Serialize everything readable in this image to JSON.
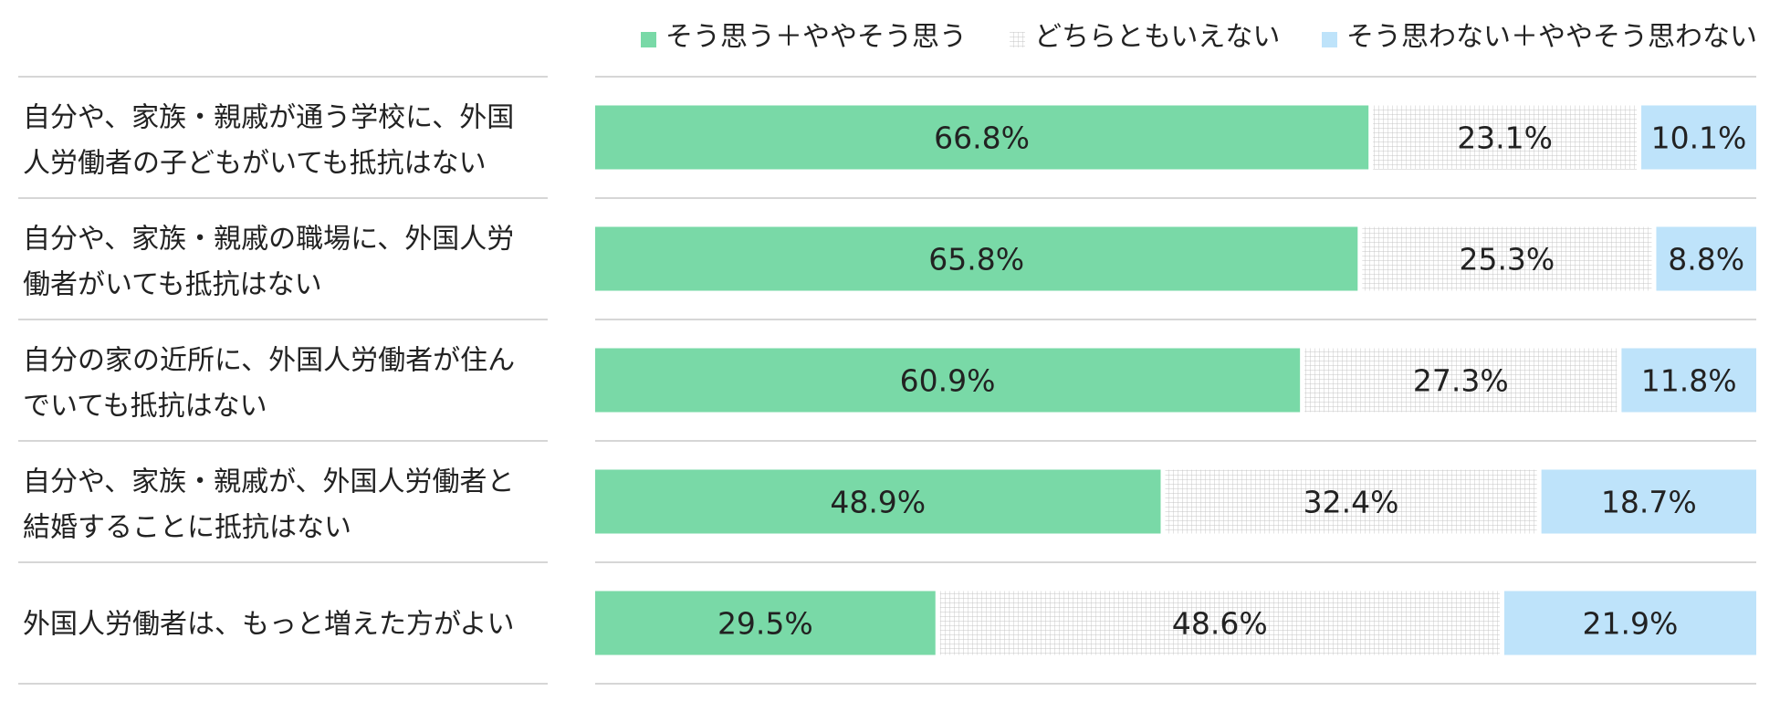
{
  "chart_data": {
    "type": "bar",
    "orientation": "horizontal",
    "stacked": true,
    "percent": true,
    "legend_position": "top-right",
    "grid": false,
    "xlim": [
      0,
      100
    ],
    "categories": [
      {
        "line1": "自分や、家族・親戚が通う学校に、外国",
        "line2": "人労働者の子どもがいても抵抗はない"
      },
      {
        "line1": "自分や、家族・親戚の職場に、外国人労",
        "line2": "働者がいても抵抗はない"
      },
      {
        "line1": "自分の家の近所に、外国人労働者が住ん",
        "line2": "でいても抵抗はない"
      },
      {
        "line1": "自分や、家族・親戚が、外国人労働者と",
        "line2": "結婚することに抵抗はない"
      },
      {
        "line1": "外国人労働者は、もっと増えた方がよい",
        "line2": ""
      }
    ],
    "series": [
      {
        "name": "そう思う＋ややそう思う",
        "color": "#79D9A7",
        "pattern": "solid",
        "values": [
          66.8,
          65.8,
          60.9,
          48.9,
          29.5
        ],
        "labels": [
          "66.8%",
          "65.8%",
          "60.9%",
          "48.9%",
          "29.5%"
        ]
      },
      {
        "name": "どちらともいえない",
        "color": "#C8C8C8",
        "pattern": "grid",
        "values": [
          23.1,
          25.3,
          27.3,
          32.4,
          48.6
        ],
        "labels": [
          "23.1%",
          "25.3%",
          "27.3%",
          "32.4%",
          "48.6%"
        ]
      },
      {
        "name": "そう思わない＋ややそう思わない",
        "color": "#BEE3FA",
        "pattern": "solid",
        "values": [
          10.1,
          8.8,
          11.8,
          18.7,
          21.9
        ],
        "labels": [
          "10.1%",
          "8.8%",
          "11.8%",
          "18.7%",
          "21.9%"
        ]
      }
    ]
  }
}
